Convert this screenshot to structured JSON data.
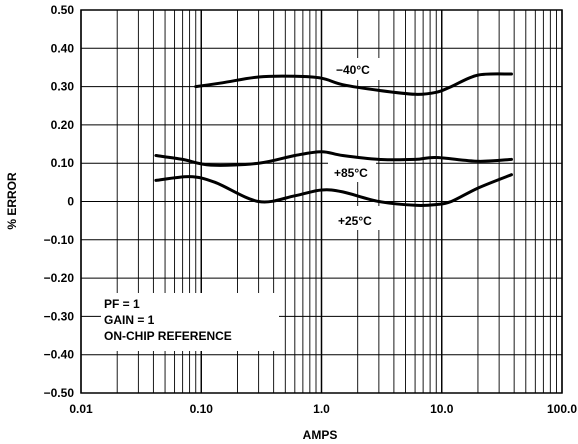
{
  "chart_data": {
    "type": "line",
    "title": "",
    "xlabel": "AMPS",
    "ylabel": "% ERROR",
    "x_scale": "log",
    "xlim": [
      0.01,
      100
    ],
    "ylim": [
      -0.5,
      0.5
    ],
    "x_ticks": [
      0.01,
      0.1,
      1,
      10,
      100
    ],
    "x_tick_labels": [
      "0.01",
      "0.10",
      "1.0",
      "10.0",
      "100.0"
    ],
    "y_ticks": [
      0.5,
      0.4,
      0.3,
      0.2,
      0.1,
      0,
      -0.1,
      -0.2,
      -0.3,
      -0.4,
      -0.5
    ],
    "y_tick_labels": [
      "0.50",
      "0.40",
      "0.30",
      "0.20",
      "0.10",
      "0",
      "−0.10",
      "−0.20",
      "−0.30",
      "−0.40",
      "−0.50"
    ],
    "grid": true,
    "series": [
      {
        "name": "−40°C",
        "x": [
          0.09,
          0.15,
          0.3,
          0.6,
          1.0,
          1.5,
          3.0,
          6.0,
          9.0,
          12.0,
          20.0,
          38.0
        ],
        "y": [
          0.3,
          0.31,
          0.325,
          0.327,
          0.322,
          0.305,
          0.29,
          0.28,
          0.285,
          0.3,
          0.33,
          0.333
        ]
      },
      {
        "name": "+85°C",
        "x": [
          0.042,
          0.07,
          0.12,
          0.3,
          0.6,
          1.0,
          1.5,
          3.0,
          6.0,
          9.0,
          20.0,
          38.0
        ],
        "y": [
          0.12,
          0.11,
          0.095,
          0.1,
          0.12,
          0.13,
          0.12,
          0.11,
          0.11,
          0.115,
          0.105,
          0.11
        ]
      },
      {
        "name": "+25°C",
        "x": [
          0.042,
          0.08,
          0.13,
          0.3,
          0.6,
          1.0,
          1.5,
          3.0,
          6.0,
          9.0,
          12.0,
          20.0,
          38.0
        ],
        "y": [
          0.055,
          0.065,
          0.05,
          0.0,
          0.015,
          0.03,
          0.025,
          0.0,
          -0.01,
          -0.008,
          0.0,
          0.035,
          0.07
        ]
      }
    ],
    "annotations": {
      "lines": [
        "PF = 1",
        "GAIN = 1",
        "ON-CHIP REFERENCE"
      ]
    }
  }
}
